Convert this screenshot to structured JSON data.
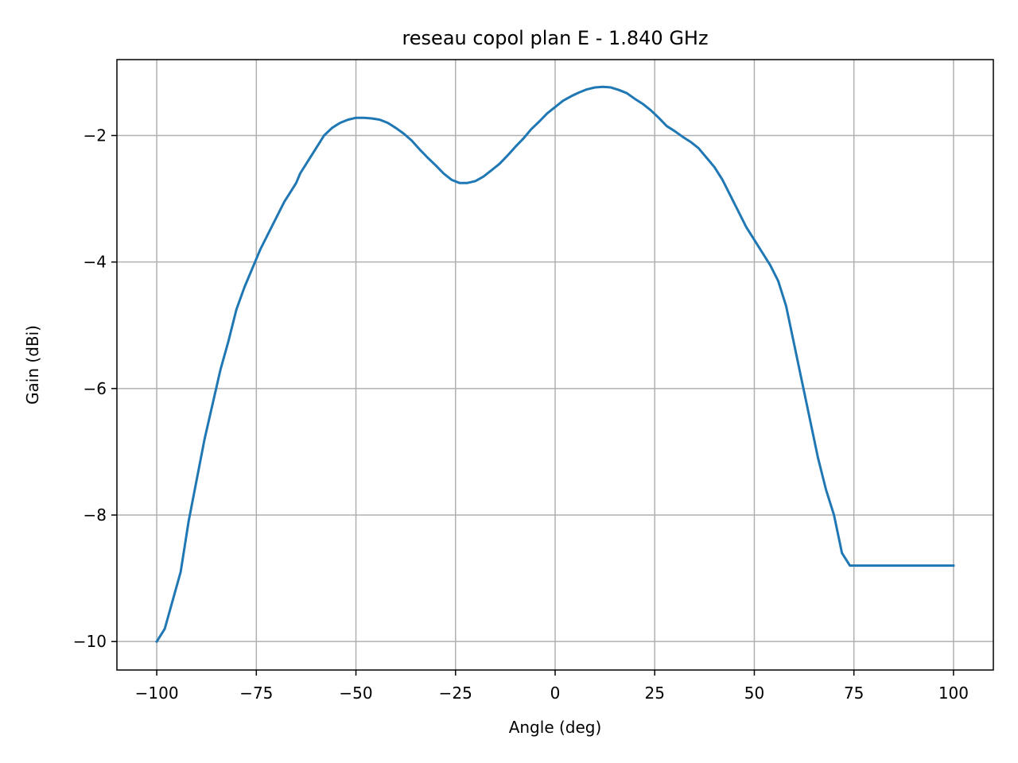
{
  "chart_data": {
    "type": "line",
    "title": "reseau copol plan E - 1.840 GHz",
    "xlabel": "Angle (deg)",
    "ylabel": "Gain (dBi)",
    "xlim": [
      -110,
      110
    ],
    "ylim": [
      -10.45,
      -0.8
    ],
    "xticks": [
      -100,
      -75,
      -50,
      -25,
      0,
      25,
      50,
      75,
      100
    ],
    "xtick_labels": [
      "−100",
      "−75",
      "−50",
      "−25",
      "0",
      "25",
      "50",
      "75",
      "100"
    ],
    "yticks": [
      -10,
      -8,
      -6,
      -4,
      -2
    ],
    "ytick_labels": [
      "−10",
      "−8",
      "−6",
      "−4",
      "−2"
    ],
    "grid": true,
    "series": [
      {
        "color": "#1f77b4",
        "x": [
          -100,
          -98,
          -96,
          -94,
          -92,
          -90,
          -88,
          -86,
          -84,
          -82,
          -80,
          -78,
          -76,
          -75,
          -74,
          -72,
          -70,
          -68,
          -66,
          -65,
          -64,
          -62,
          -60,
          -58,
          -56,
          -54,
          -52,
          -50,
          -48,
          -46,
          -44,
          -42,
          -40,
          -38,
          -36,
          -34,
          -32,
          -30,
          -28,
          -26,
          -24,
          -22,
          -20,
          -18,
          -16,
          -14,
          -12,
          -10,
          -8,
          -6,
          -4,
          -2,
          0,
          2,
          4,
          6,
          8,
          10,
          12,
          14,
          16,
          18,
          20,
          22,
          24,
          26,
          28,
          30,
          32,
          34,
          36,
          38,
          40,
          42,
          44,
          46,
          48,
          50,
          52,
          54,
          56,
          58,
          60,
          62,
          64,
          66,
          68,
          70,
          72,
          74,
          76,
          78,
          80,
          82,
          84,
          86,
          88,
          90,
          92,
          94,
          96,
          98,
          100
        ],
        "y": [
          -10.0,
          -9.8,
          -9.35,
          -8.9,
          -8.1,
          -7.45,
          -6.8,
          -6.25,
          -5.7,
          -5.25,
          -4.75,
          -4.4,
          -4.1,
          -3.95,
          -3.8,
          -3.55,
          -3.3,
          -3.05,
          -2.85,
          -2.75,
          -2.6,
          -2.4,
          -2.2,
          -2.0,
          -1.88,
          -1.8,
          -1.75,
          -1.72,
          -1.72,
          -1.73,
          -1.75,
          -1.8,
          -1.88,
          -1.97,
          -2.08,
          -2.22,
          -2.35,
          -2.47,
          -2.6,
          -2.7,
          -2.75,
          -2.75,
          -2.72,
          -2.65,
          -2.55,
          -2.45,
          -2.32,
          -2.18,
          -2.05,
          -1.9,
          -1.78,
          -1.65,
          -1.55,
          -1.45,
          -1.38,
          -1.32,
          -1.27,
          -1.24,
          -1.23,
          -1.24,
          -1.28,
          -1.33,
          -1.42,
          -1.5,
          -1.6,
          -1.72,
          -1.85,
          -1.93,
          -2.02,
          -2.1,
          -2.2,
          -2.35,
          -2.5,
          -2.7,
          -2.95,
          -3.2,
          -3.45,
          -3.65,
          -3.85,
          -4.05,
          -4.3,
          -4.7,
          -5.3,
          -5.9,
          -6.5,
          -7.1,
          -7.6,
          -8.0,
          -8.6,
          -8.8,
          -8.8,
          -8.8,
          -8.8,
          -8.8,
          -8.8,
          -8.8,
          -8.8,
          -8.8,
          -8.8,
          -8.8,
          -8.8,
          -8.8,
          -8.8
        ]
      }
    ]
  }
}
